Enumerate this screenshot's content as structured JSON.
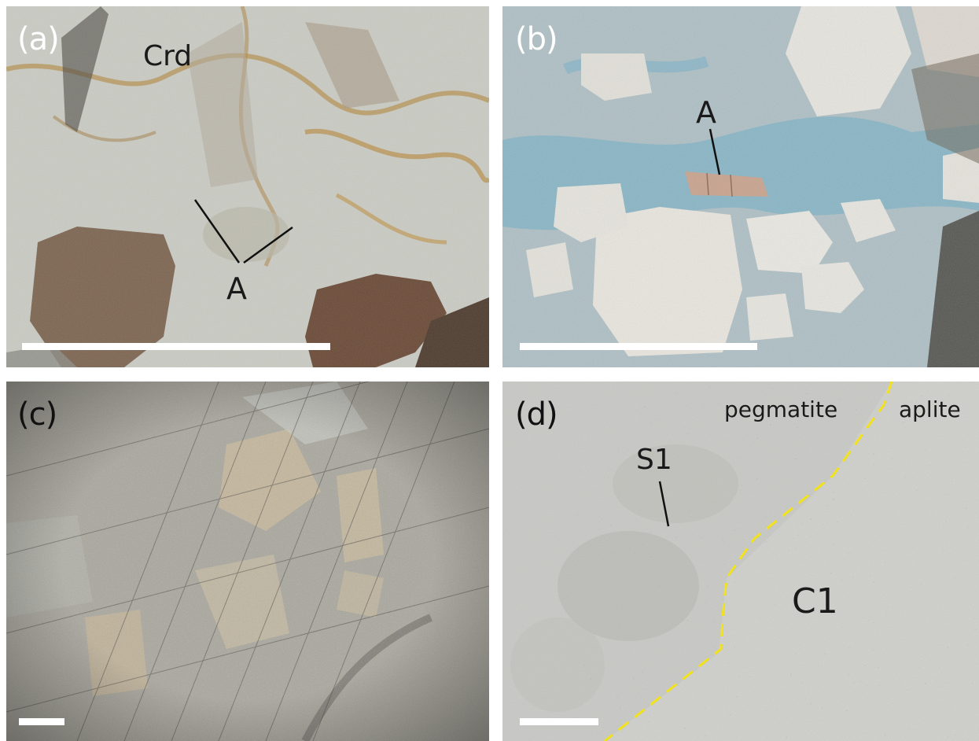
{
  "panels": {
    "a": {
      "letter": "(a)",
      "labels": {
        "crd": "Crd",
        "a": "A"
      },
      "background_color": "#c8c9bf"
    },
    "b": {
      "letter": "(b)",
      "labels": {
        "a": "A"
      },
      "background_color": "#b7c2c4"
    },
    "c": {
      "letter": "(c)",
      "background_color": "#a6a59c"
    },
    "d": {
      "letter": "(d)",
      "labels": {
        "pegmatite": "pegmatite",
        "aplite": "aplite",
        "s1": "S1",
        "c1": "C1"
      },
      "background_color": "#c6c7c3",
      "boundary_color": "#f2e21a"
    }
  }
}
